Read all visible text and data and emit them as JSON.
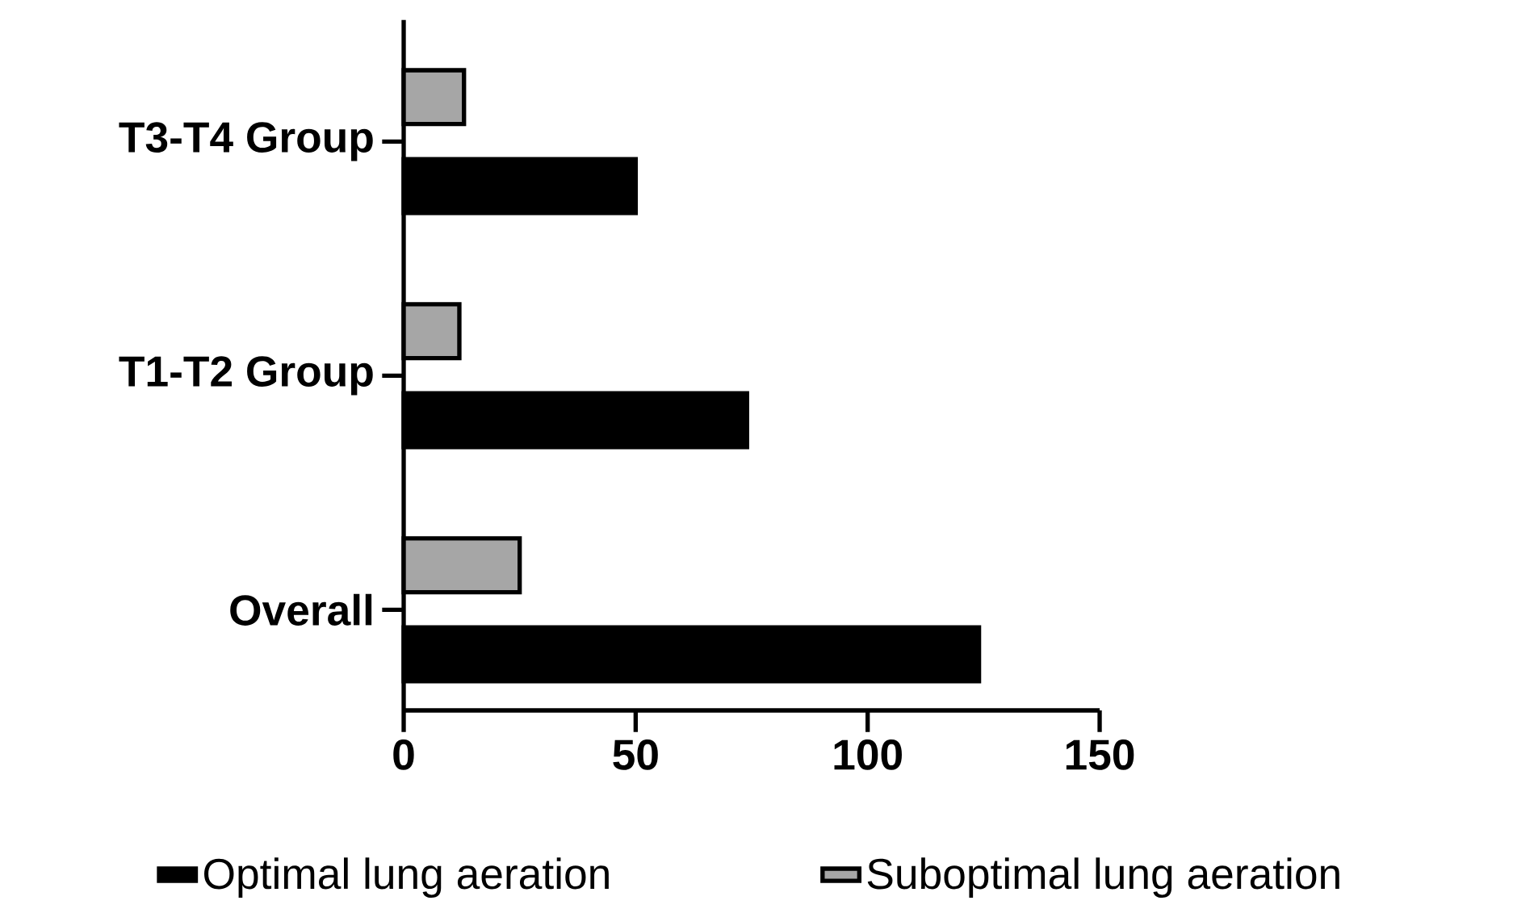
{
  "chart_data": {
    "type": "bar",
    "orientation": "horizontal",
    "categories": [
      "T3-T4 Group",
      "T1-T2 Group",
      "Overall"
    ],
    "series": [
      {
        "name": "Optimal lung aeration",
        "color": "#000000",
        "values": [
          50,
          74,
          124
        ]
      },
      {
        "name": "Suboptimal lung aeration",
        "color": "#a6a6a6",
        "values": [
          13,
          12,
          25
        ]
      }
    ],
    "xlim": [
      0,
      150
    ],
    "xticks": [
      0,
      50,
      100,
      150
    ],
    "legend": "bottom",
    "grid": false
  }
}
